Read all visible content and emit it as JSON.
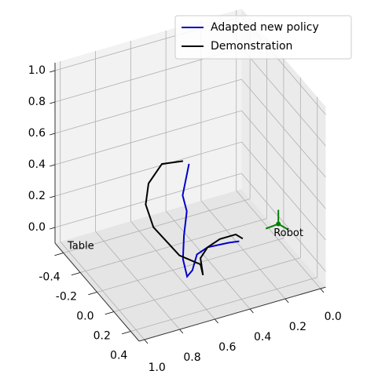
{
  "chart_data": {
    "type": "line3d",
    "xlim": [
      -0.03,
      1.03
    ],
    "ylim": [
      -0.5,
      0.5
    ],
    "zlim": [
      -0.1,
      1.05
    ],
    "xticks": [
      {
        "value": 0,
        "label": "0.0"
      },
      0.2,
      0.4,
      0.6,
      0.8,
      {
        "value": 1,
        "label": "1.0"
      }
    ],
    "yticks": [
      -0.4,
      -0.2,
      {
        "value": 0,
        "label": "0.0"
      },
      0.2,
      0.4
    ],
    "zticks": [
      {
        "value": 0,
        "label": "0.0"
      },
      0.2,
      0.4,
      0.6,
      0.8,
      {
        "value": 1,
        "label": "1.0"
      }
    ],
    "grid": true,
    "legend": "upper right",
    "series": [
      {
        "name": "Adapted new policy",
        "color": "#0000cc",
        "x": [
          0.46,
          0.52,
          0.52,
          0.56,
          0.59,
          0.59,
          0.56,
          0.52,
          0.45,
          0.33,
          0.27
        ],
        "y": [
          -0.1,
          -0.05,
          0,
          0.05,
          0.1,
          0.15,
          0.15,
          0.12,
          0.1,
          0.1,
          0.1
        ],
        "z": [
          0.47,
          0.32,
          0.25,
          0.14,
          0.03,
          -0.05,
          -0.02,
          0.05,
          0.06,
          0.05,
          0.04
        ]
      },
      {
        "name": "Demonstration",
        "color": "#000000",
        "x": [
          0.47,
          0.59,
          0.69,
          0.73,
          0.71,
          0.65,
          0.61,
          0.55,
          0.5,
          0.5,
          0.5,
          0.45,
          0.38,
          0.29,
          0.25
        ],
        "y": [
          -0.15,
          -0.15,
          -0.1,
          -0.05,
          0,
          0.05,
          0.1,
          0.12,
          0.12,
          0.15,
          0.12,
          0.1,
          0.1,
          0.1,
          0.1
        ],
        "z": [
          0.46,
          0.48,
          0.42,
          0.33,
          0.21,
          0.12,
          0.06,
          0.02,
          -0.02,
          -0.07,
          0.02,
          0.06,
          0.09,
          0.09,
          0.05
        ]
      }
    ],
    "annotations": [
      {
        "text": "Robot",
        "x": 0,
        "y": 0,
        "z": 0,
        "color": "#008000"
      },
      {
        "text": "Table",
        "color": "#999999"
      }
    ]
  }
}
